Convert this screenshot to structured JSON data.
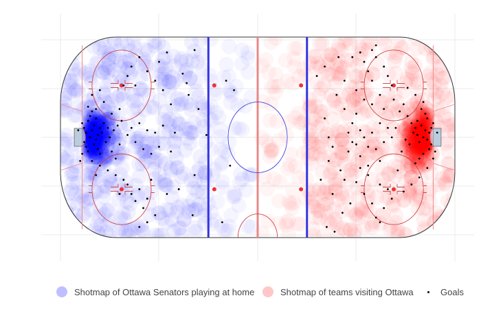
{
  "chart_data": {
    "type": "scatter",
    "title": "",
    "xlabel": "",
    "ylabel": "",
    "xlim": [
      -100,
      100
    ],
    "ylim": [
      -42.5,
      42.5
    ],
    "grid": true,
    "legend_position": "bottom",
    "series": [
      {
        "name": "Shotmap of Ottawa Senators playing at home",
        "color": "#0000ff",
        "marker": "large-transparent-circle",
        "points": []
      },
      {
        "name": "Shotmap of teams visiting Ottawa",
        "color": "#ff0000",
        "marker": "large-transparent-circle",
        "points": []
      },
      {
        "name": "Goals",
        "color": "#000000",
        "marker": "small-dot",
        "points": [
          [
            -89,
            6
          ],
          [
            -88,
            4
          ],
          [
            -87,
            2
          ],
          [
            -86,
            7
          ],
          [
            -85,
            0
          ],
          [
            -84,
            3
          ],
          [
            -83,
            5
          ],
          [
            -82,
            -1
          ],
          [
            -81,
            1
          ],
          [
            -80,
            4
          ],
          [
            -88,
            -2
          ],
          [
            -87,
            -4
          ],
          [
            -86,
            -6
          ],
          [
            -85,
            9
          ],
          [
            -84,
            11
          ],
          [
            -83,
            -3
          ],
          [
            -82,
            8
          ],
          [
            -81,
            -5
          ],
          [
            -80,
            -7
          ],
          [
            -79,
            2
          ],
          [
            -78,
            6
          ],
          [
            -77,
            -2
          ],
          [
            -76,
            4
          ],
          [
            -75,
            0
          ],
          [
            -74,
            -6
          ],
          [
            -73,
            3
          ],
          [
            -72,
            -9
          ],
          [
            -71,
            5
          ],
          [
            -70,
            -3
          ],
          [
            -69,
            7
          ],
          [
            -86,
            13
          ],
          [
            -84,
            -10
          ],
          [
            -82,
            12
          ],
          [
            -80,
            -12
          ],
          [
            -78,
            15
          ],
          [
            -76,
            -14
          ],
          [
            -74,
            10
          ],
          [
            -72,
            -16
          ],
          [
            -70,
            12
          ],
          [
            -68,
            -18
          ],
          [
            -66,
            1
          ],
          [
            -64,
            4
          ],
          [
            -62,
            -2
          ],
          [
            -60,
            6
          ],
          [
            -58,
            -5
          ],
          [
            -56,
            3
          ],
          [
            -54,
            -7
          ],
          [
            -52,
            2
          ],
          [
            -50,
            -4
          ],
          [
            -48,
            5
          ],
          [
            -66,
            -20
          ],
          [
            -64,
            -24
          ],
          [
            -62,
            -27
          ],
          [
            -60,
            -22
          ],
          [
            -58,
            -30
          ],
          [
            -56,
            -26
          ],
          [
            -54,
            -18
          ],
          [
            -52,
            -33
          ],
          [
            -60,
            -38
          ],
          [
            -56,
            -36
          ],
          [
            -66,
            26
          ],
          [
            -64,
            30
          ],
          [
            -62,
            22
          ],
          [
            -60,
            34
          ],
          [
            -56,
            28
          ],
          [
            -52,
            24
          ],
          [
            -50,
            32
          ],
          [
            -48,
            20
          ],
          [
            -46,
            36
          ],
          [
            -44,
            14
          ],
          [
            -90,
            -10
          ],
          [
            -91,
            3
          ],
          [
            -89,
            -7
          ],
          [
            -84,
            18
          ],
          [
            -82,
            -16
          ],
          [
            -80,
            20
          ],
          [
            -70,
            -24
          ],
          [
            -68,
            22
          ],
          [
            -46,
            -24
          ],
          [
            -40,
            -22
          ],
          [
            -38,
            27
          ],
          [
            -36,
            23
          ],
          [
            -35,
            18
          ],
          [
            -33,
            -33
          ],
          [
            -32,
            -16
          ],
          [
            -30,
            12
          ],
          [
            -32,
            37
          ],
          [
            -44,
            -6
          ],
          [
            -42,
            2
          ],
          [
            -26,
            1
          ],
          [
            -16,
            24
          ],
          [
            -18,
            -36
          ],
          [
            -12,
            20
          ],
          [
            -14,
            -12
          ],
          [
            36,
            -10
          ],
          [
            35,
            -38
          ],
          [
            39,
            -40
          ],
          [
            89,
            6
          ],
          [
            88,
            4
          ],
          [
            87,
            2
          ],
          [
            86,
            -1
          ],
          [
            85,
            3
          ],
          [
            84,
            0
          ],
          [
            83,
            5
          ],
          [
            82,
            -2
          ],
          [
            81,
            1
          ],
          [
            80,
            4
          ],
          [
            88,
            -3
          ],
          [
            87,
            -5
          ],
          [
            86,
            8
          ],
          [
            85,
            10
          ],
          [
            84,
            -7
          ],
          [
            83,
            12
          ],
          [
            82,
            -9
          ],
          [
            81,
            7
          ],
          [
            80,
            -11
          ],
          [
            79,
            2
          ],
          [
            78,
            6
          ],
          [
            77,
            -3
          ],
          [
            76,
            9
          ],
          [
            75,
            -1
          ],
          [
            74,
            14
          ],
          [
            73,
            -6
          ],
          [
            72,
            11
          ],
          [
            71,
            -14
          ],
          [
            70,
            4
          ],
          [
            69,
            16
          ],
          [
            90,
            -6
          ],
          [
            91,
            2
          ],
          [
            89,
            -9
          ],
          [
            86,
            -13
          ],
          [
            84,
            15
          ],
          [
            82,
            -17
          ],
          [
            80,
            18
          ],
          [
            78,
            -20
          ],
          [
            76,
            21
          ],
          [
            74,
            -23
          ],
          [
            68,
            0
          ],
          [
            66,
            4
          ],
          [
            64,
            -2
          ],
          [
            62,
            6
          ],
          [
            60,
            -5
          ],
          [
            58,
            2
          ],
          [
            56,
            -4
          ],
          [
            54,
            0
          ],
          [
            52,
            3
          ],
          [
            50,
            -3
          ],
          [
            68,
            -26
          ],
          [
            66,
            -22
          ],
          [
            64,
            -30
          ],
          [
            62,
            -20
          ],
          [
            60,
            -34
          ],
          [
            58,
            -28
          ],
          [
            56,
            -16
          ],
          [
            54,
            -24
          ],
          [
            52,
            -13
          ],
          [
            50,
            -19
          ],
          [
            68,
            22
          ],
          [
            66,
            26
          ],
          [
            64,
            30
          ],
          [
            62,
            18
          ],
          [
            60,
            34
          ],
          [
            58,
            24
          ],
          [
            56,
            28
          ],
          [
            54,
            32
          ],
          [
            52,
            36
          ],
          [
            50,
            20
          ],
          [
            48,
            6
          ],
          [
            46,
            -6
          ],
          [
            44,
            12
          ],
          [
            42,
            -14
          ],
          [
            40,
            18
          ],
          [
            38,
            -24
          ],
          [
            36,
            0
          ],
          [
            34,
            8
          ],
          [
            32,
            -18
          ],
          [
            30,
            26
          ],
          [
            47,
            -28
          ],
          [
            43,
            -32
          ],
          [
            41,
            34
          ],
          [
            60,
            39
          ],
          [
            58,
            37
          ],
          [
            62,
            -36
          ],
          [
            48,
            34
          ],
          [
            44,
            24
          ],
          [
            38,
            -4
          ],
          [
            34,
            30
          ],
          [
            64,
            12
          ],
          [
            62,
            -10
          ],
          [
            58,
            14
          ],
          [
            56,
            -12
          ],
          [
            54,
            16
          ],
          [
            52,
            -8
          ],
          [
            50,
            10
          ],
          [
            48,
            -2
          ],
          [
            46,
            2
          ],
          [
            44,
            -18
          ]
        ]
      }
    ]
  }
}
